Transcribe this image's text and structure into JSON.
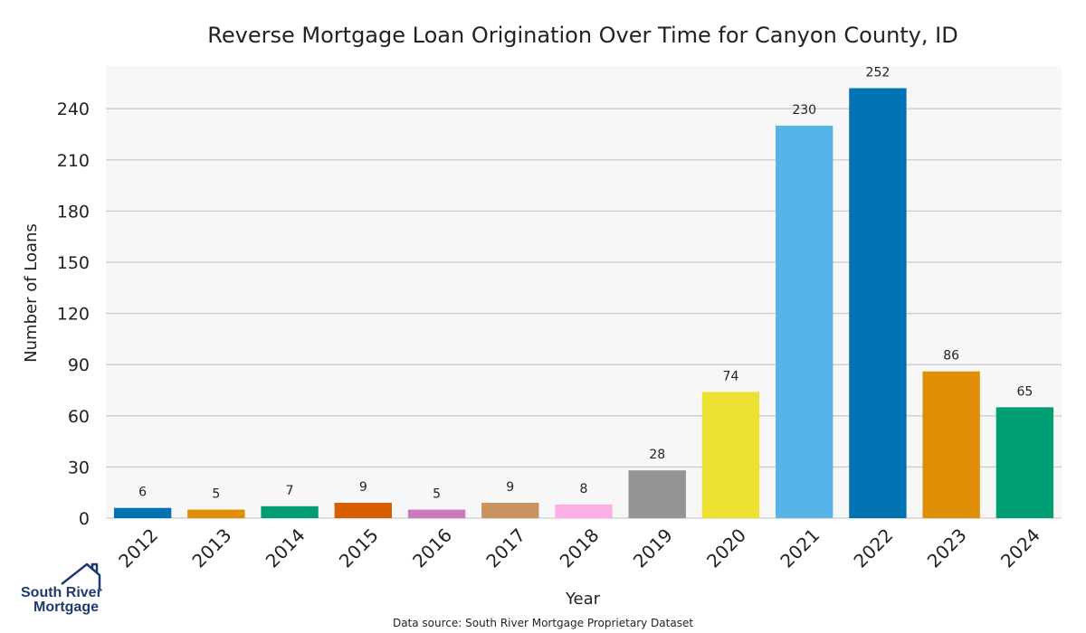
{
  "chart_data": {
    "type": "bar",
    "title": "Reverse Mortgage Loan Origination Over Time for Canyon County, ID",
    "xlabel": "Year",
    "ylabel": "Number of Loans",
    "categories": [
      "2012",
      "2013",
      "2014",
      "2015",
      "2016",
      "2017",
      "2018",
      "2019",
      "2020",
      "2021",
      "2022",
      "2023",
      "2024"
    ],
    "values": [
      6,
      5,
      7,
      9,
      5,
      9,
      8,
      28,
      74,
      230,
      252,
      86,
      65
    ],
    "colors": [
      "#0173b2",
      "#de8f05",
      "#029e73",
      "#d55e00",
      "#cc78bc",
      "#ca9161",
      "#fbafe4",
      "#949494",
      "#ece133",
      "#56b4e9",
      "#0173b2",
      "#de8f05",
      "#029e73"
    ],
    "ylim": [
      0,
      265
    ],
    "yticks": [
      0,
      30,
      60,
      90,
      120,
      150,
      180,
      210,
      240
    ],
    "grid": true,
    "background": "#f7f7f7",
    "grid_color": "#cccccc"
  },
  "logo": {
    "line1": "South River",
    "line2": "Mortgage",
    "color": "#1f3a6e"
  },
  "source_note": "Data source: South River Mortgage Proprietary Dataset"
}
